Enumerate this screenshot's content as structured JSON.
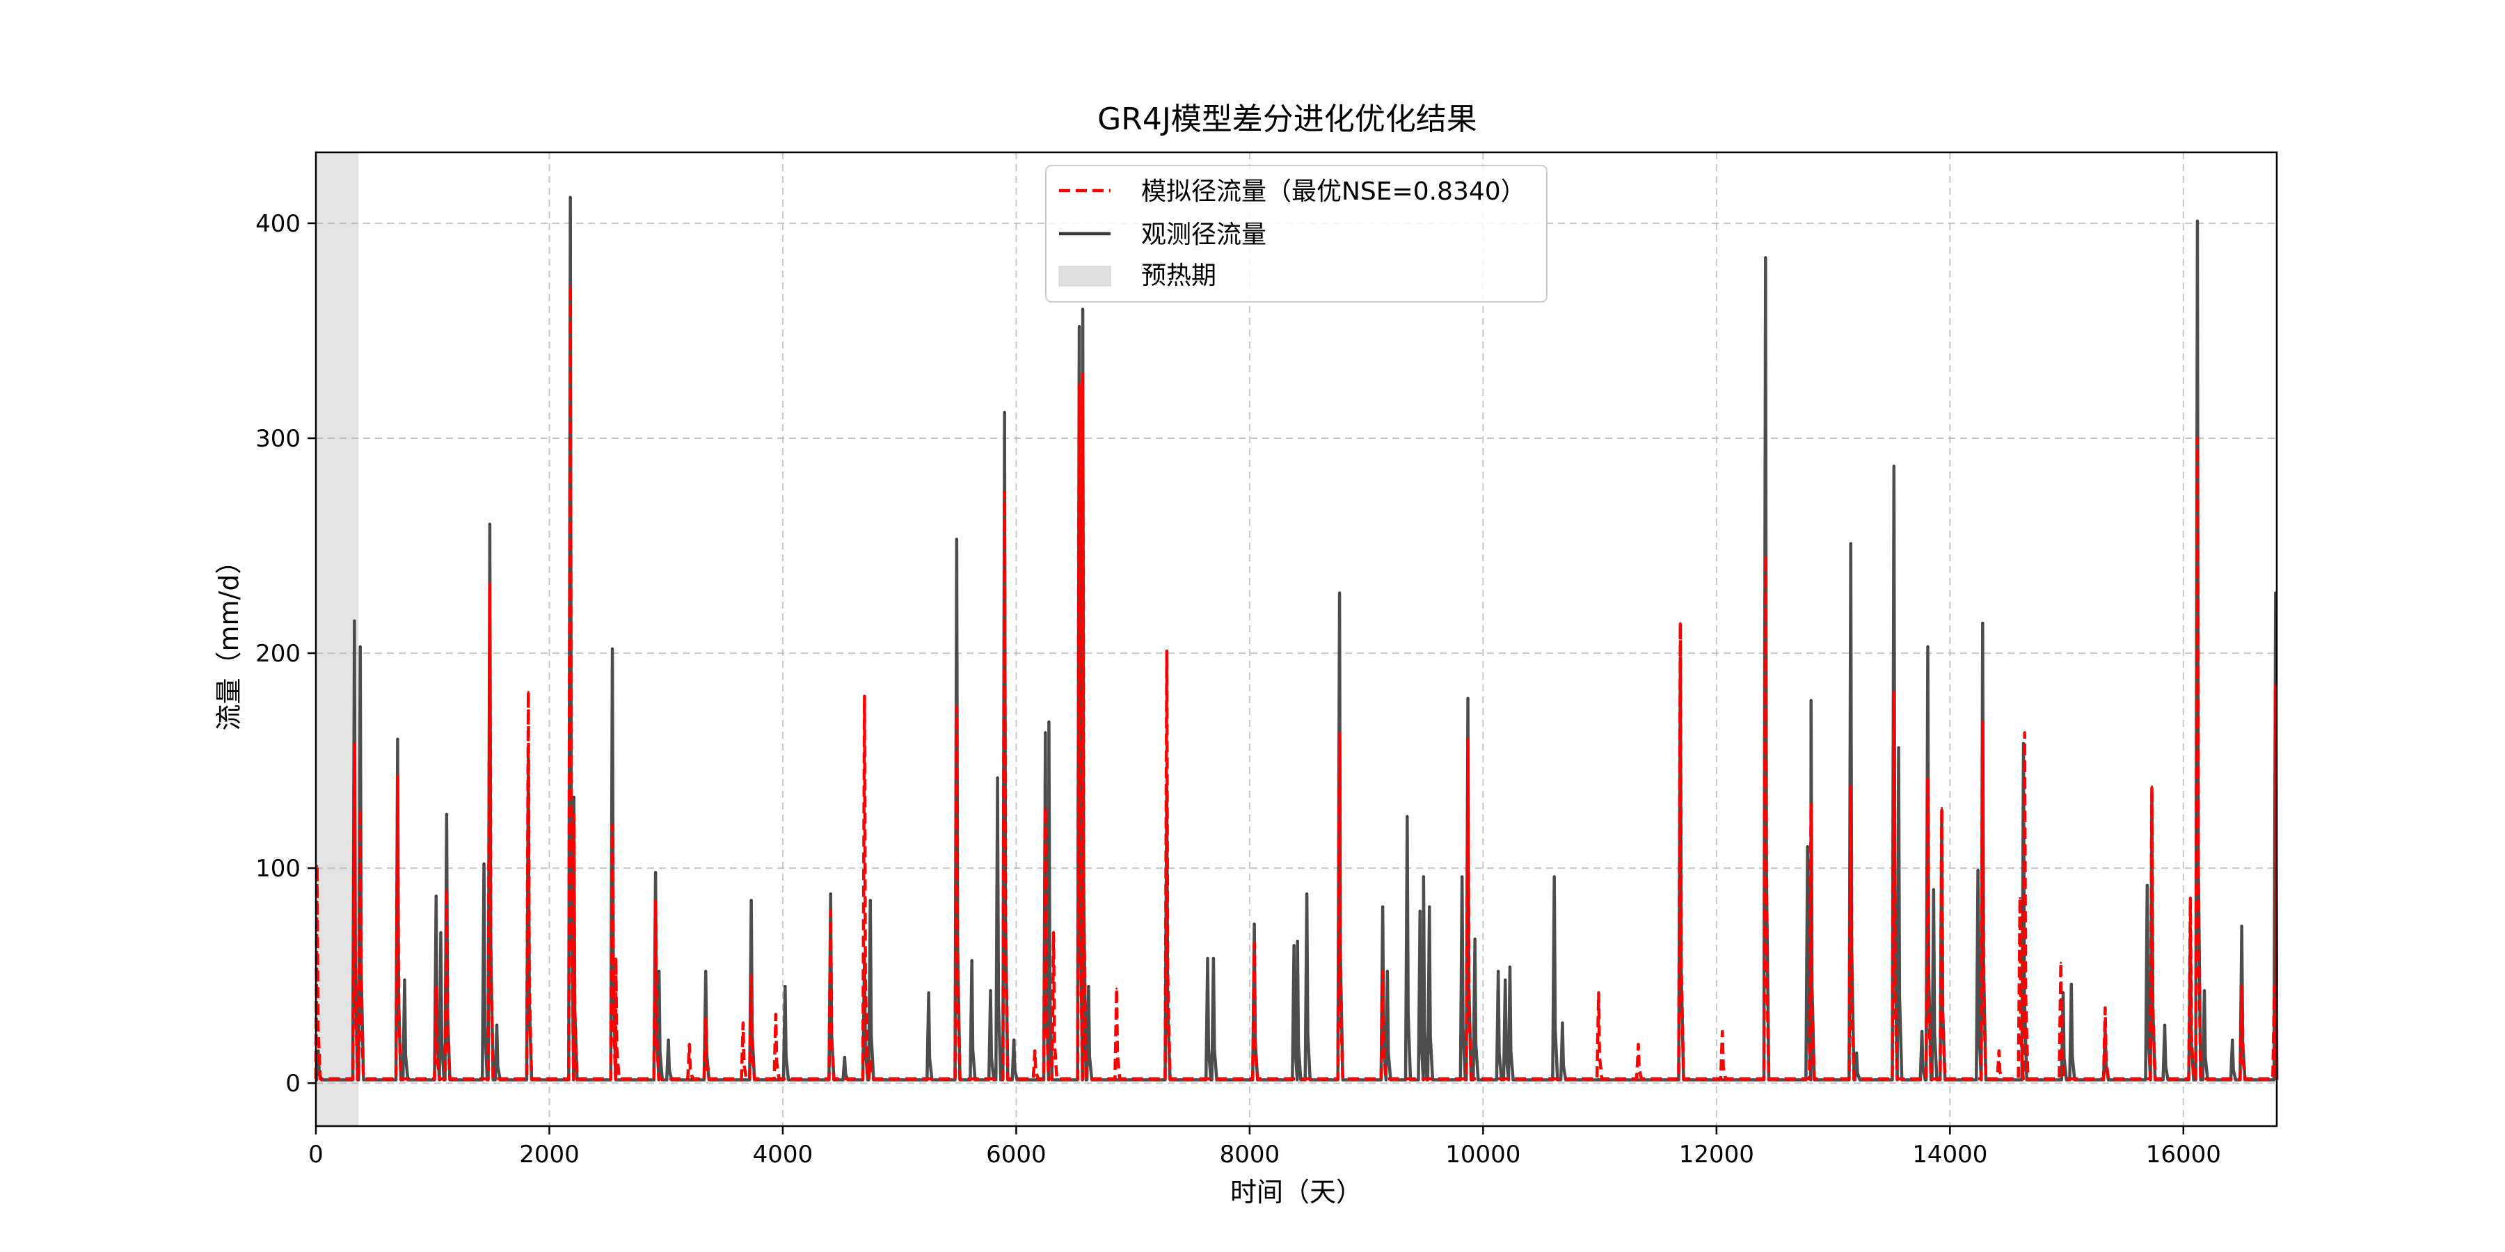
{
  "chart_data": {
    "type": "line",
    "title": "GR4J模型差分进化优化结果",
    "xlabel": "时间（天）",
    "ylabel": "流量（mm/d）",
    "xlim": [
      0,
      16800
    ],
    "ylim": [
      -20,
      433
    ],
    "xticks": [
      0,
      2000,
      4000,
      6000,
      8000,
      10000,
      12000,
      14000,
      16000
    ],
    "yticks": [
      0,
      100,
      200,
      300,
      400
    ],
    "grid": true,
    "legend_position": "top-center",
    "warmup": {
      "name": "预热期",
      "x_start": 0,
      "x_end": 365,
      "color": "#e0e0e0"
    },
    "series": [
      {
        "name": "观测径流量",
        "color": "#3a3a3a",
        "style": "solid",
        "baseline": 1.5,
        "peaks": [
          [
            20,
            15
          ],
          [
            330,
            215
          ],
          [
            380,
            203
          ],
          [
            700,
            160
          ],
          [
            760,
            48
          ],
          [
            1030,
            87
          ],
          [
            1070,
            70
          ],
          [
            1120,
            125
          ],
          [
            1440,
            102
          ],
          [
            1490,
            260
          ],
          [
            1550,
            27
          ],
          [
            1820,
            152
          ],
          [
            2180,
            412
          ],
          [
            2210,
            133
          ],
          [
            2540,
            202
          ],
          [
            2910,
            98
          ],
          [
            2940,
            52
          ],
          [
            3020,
            20
          ],
          [
            3340,
            52
          ],
          [
            3730,
            85
          ],
          [
            4020,
            45
          ],
          [
            4410,
            88
          ],
          [
            4530,
            12
          ],
          [
            4700,
            60
          ],
          [
            4750,
            85
          ],
          [
            5250,
            42
          ],
          [
            5490,
            253
          ],
          [
            5620,
            57
          ],
          [
            5780,
            43
          ],
          [
            5840,
            142
          ],
          [
            5900,
            312
          ],
          [
            5980,
            20
          ],
          [
            6250,
            163
          ],
          [
            6280,
            168
          ],
          [
            6540,
            352
          ],
          [
            6570,
            360
          ],
          [
            6620,
            45
          ],
          [
            7290,
            138
          ],
          [
            7640,
            58
          ],
          [
            7690,
            58
          ],
          [
            8040,
            74
          ],
          [
            8380,
            64
          ],
          [
            8410,
            66
          ],
          [
            8490,
            88
          ],
          [
            8770,
            228
          ],
          [
            9140,
            82
          ],
          [
            9180,
            52
          ],
          [
            9350,
            124
          ],
          [
            9460,
            80
          ],
          [
            9490,
            96
          ],
          [
            9540,
            82
          ],
          [
            9820,
            96
          ],
          [
            9870,
            179
          ],
          [
            9930,
            67
          ],
          [
            10130,
            52
          ],
          [
            10190,
            48
          ],
          [
            10230,
            54
          ],
          [
            10610,
            96
          ],
          [
            10680,
            28
          ],
          [
            11690,
            198
          ],
          [
            12420,
            384
          ],
          [
            12780,
            110
          ],
          [
            12810,
            178
          ],
          [
            13150,
            251
          ],
          [
            13200,
            14
          ],
          [
            13520,
            287
          ],
          [
            13560,
            156
          ],
          [
            13760,
            24
          ],
          [
            13810,
            203
          ],
          [
            13860,
            90
          ],
          [
            13930,
            127
          ],
          [
            14240,
            99
          ],
          [
            14280,
            214
          ],
          [
            14630,
            158
          ],
          [
            14970,
            42
          ],
          [
            15040,
            46
          ],
          [
            15330,
            25
          ],
          [
            15690,
            92
          ],
          [
            15730,
            135
          ],
          [
            15840,
            27
          ],
          [
            16060,
            72
          ],
          [
            16120,
            401
          ],
          [
            16180,
            43
          ],
          [
            16420,
            20
          ],
          [
            16500,
            73
          ],
          [
            16790,
            228
          ]
        ]
      },
      {
        "name": "模拟径流量（最优NSE=0.8340）",
        "color": "#ff0000",
        "style": "dashed",
        "baseline": 2.0,
        "peaks": [
          [
            10,
            101
          ],
          [
            330,
            158
          ],
          [
            380,
            127
          ],
          [
            700,
            143
          ],
          [
            1030,
            45
          ],
          [
            1120,
            90
          ],
          [
            1490,
            232
          ],
          [
            1820,
            182
          ],
          [
            2180,
            371
          ],
          [
            2210,
            125
          ],
          [
            2540,
            120
          ],
          [
            2570,
            58
          ],
          [
            2910,
            85
          ],
          [
            3200,
            18
          ],
          [
            3340,
            30
          ],
          [
            3660,
            28
          ],
          [
            3730,
            50
          ],
          [
            3940,
            32
          ],
          [
            4410,
            80
          ],
          [
            4700,
            180
          ],
          [
            4750,
            10
          ],
          [
            5490,
            175
          ],
          [
            5900,
            275
          ],
          [
            6160,
            15
          ],
          [
            6250,
            128
          ],
          [
            6320,
            70
          ],
          [
            6540,
            325
          ],
          [
            6570,
            330
          ],
          [
            6860,
            44
          ],
          [
            7290,
            201
          ],
          [
            8040,
            65
          ],
          [
            8770,
            163
          ],
          [
            9140,
            52
          ],
          [
            9870,
            160
          ],
          [
            10990,
            42
          ],
          [
            11330,
            18
          ],
          [
            11690,
            214
          ],
          [
            12050,
            24
          ],
          [
            12420,
            245
          ],
          [
            12810,
            130
          ],
          [
            13150,
            138
          ],
          [
            13520,
            182
          ],
          [
            13810,
            142
          ],
          [
            13930,
            128
          ],
          [
            14280,
            168
          ],
          [
            14420,
            15
          ],
          [
            14600,
            86
          ],
          [
            14640,
            163
          ],
          [
            14950,
            56
          ],
          [
            15330,
            35
          ],
          [
            15730,
            138
          ],
          [
            16060,
            86
          ],
          [
            16120,
            300
          ],
          [
            16500,
            45
          ],
          [
            16780,
            45
          ],
          [
            16790,
            185
          ]
        ]
      }
    ]
  }
}
